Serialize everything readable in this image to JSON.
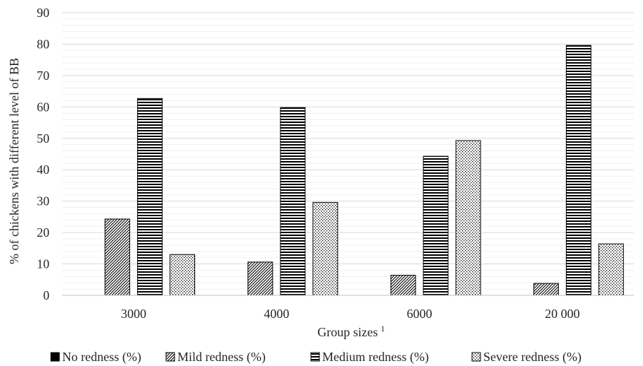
{
  "chart_data": {
    "type": "bar",
    "title": "",
    "xlabel": "Group sizes",
    "xlabel_sup": "1",
    "ylabel": "% of chickens with different level of BB",
    "ylim": [
      0,
      90
    ],
    "yticks": [
      "0",
      "10",
      "20",
      "30",
      "40",
      "50",
      "60",
      "70",
      "80",
      "90"
    ],
    "categories": [
      "3000",
      "4000",
      "6000",
      "20 000"
    ],
    "grid": "horizontal",
    "legend_position": "bottom",
    "series": [
      {
        "name": "No redness (%)",
        "values": [
          0,
          0,
          0,
          0
        ],
        "pattern": "solid"
      },
      {
        "name": "Mild redness (%)",
        "values": [
          24.3,
          10.6,
          6.4,
          3.8
        ],
        "pattern": "diagonal"
      },
      {
        "name": "Medium redness (%)",
        "values": [
          62.7,
          59.8,
          44.3,
          79.6
        ],
        "pattern": "horizontal"
      },
      {
        "name": "Severe redness (%)",
        "values": [
          13.0,
          29.6,
          49.3,
          16.4
        ],
        "pattern": "dots"
      }
    ]
  }
}
